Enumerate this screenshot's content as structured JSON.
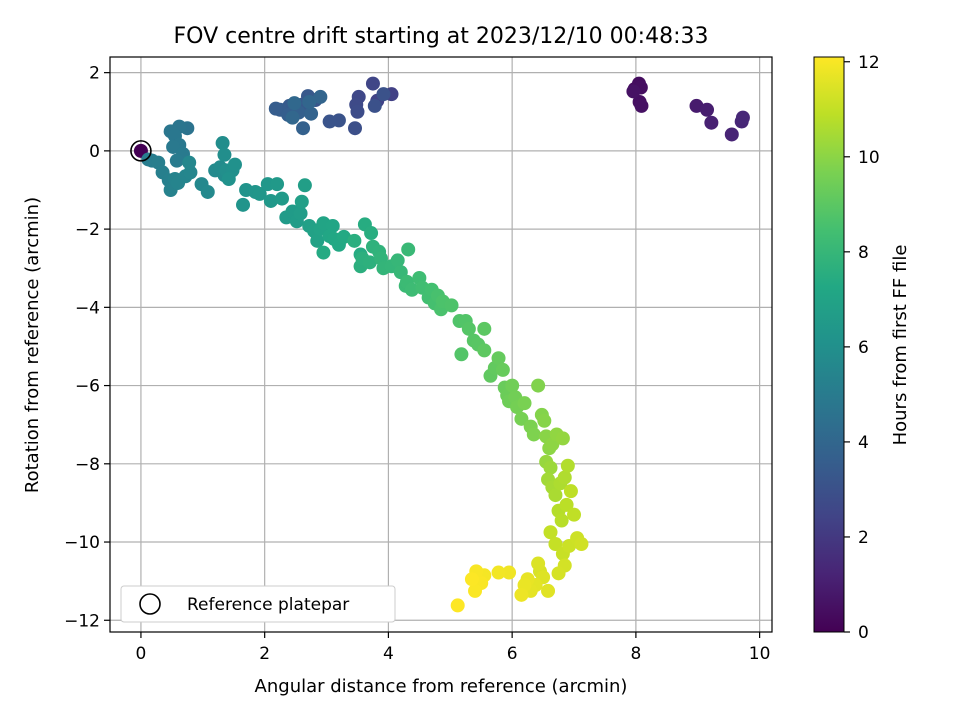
{
  "chart_data": {
    "type": "scatter",
    "title": "FOV centre drift starting at 2023/12/10 00:48:33",
    "xlabel": "Angular distance from reference (arcmin)",
    "ylabel": "Rotation from reference (arcmin)",
    "colorbar_label": "Hours from first FF file",
    "xlim": [
      -0.5,
      10.2
    ],
    "ylim": [
      -12.3,
      2.4
    ],
    "xticks": [
      0,
      2,
      4,
      6,
      8,
      10
    ],
    "yticks": [
      -12,
      -10,
      -8,
      -6,
      -4,
      -2,
      0,
      2
    ],
    "colorbar_range": [
      0,
      12.1
    ],
    "colorbar_ticks": [
      0,
      2,
      4,
      6,
      8,
      10,
      12
    ],
    "colormap": "viridis",
    "grid": true,
    "legend_position": "lower-left",
    "legend_label": "Reference platepar",
    "reference_point": {
      "x": 0,
      "y": 0
    },
    "points": [
      [
        0.0,
        0.0,
        0.0
      ],
      [
        7.98,
        1.58,
        0.35
      ],
      [
        8.05,
        1.72,
        0.4
      ],
      [
        8.08,
        1.62,
        0.45
      ],
      [
        8.06,
        1.25,
        0.5
      ],
      [
        8.09,
        1.15,
        0.55
      ],
      [
        7.96,
        1.52,
        0.6
      ],
      [
        8.98,
        1.15,
        0.9
      ],
      [
        9.15,
        1.05,
        1.0
      ],
      [
        9.22,
        0.72,
        1.1
      ],
      [
        9.55,
        0.42,
        1.2
      ],
      [
        9.71,
        0.75,
        1.3
      ],
      [
        9.73,
        0.85,
        1.35
      ],
      [
        4.05,
        1.45,
        2.3
      ],
      [
        3.82,
        1.28,
        2.4
      ],
      [
        3.75,
        1.72,
        2.5
      ],
      [
        3.52,
        1.38,
        2.6
      ],
      [
        3.48,
        1.18,
        2.7
      ],
      [
        3.5,
        1.0,
        2.8
      ],
      [
        3.46,
        0.58,
        2.9
      ],
      [
        3.78,
        1.15,
        3.0
      ],
      [
        3.92,
        1.45,
        3.05
      ],
      [
        3.2,
        0.78,
        3.1
      ],
      [
        3.05,
        0.75,
        3.15
      ],
      [
        2.82,
        1.3,
        3.2
      ],
      [
        2.7,
        1.4,
        3.3
      ],
      [
        2.6,
        1.18,
        3.35
      ],
      [
        2.4,
        1.15,
        3.4
      ],
      [
        2.25,
        1.05,
        3.5
      ],
      [
        2.18,
        1.08,
        3.55
      ],
      [
        2.38,
        0.92,
        3.6
      ],
      [
        2.55,
        0.98,
        3.7
      ],
      [
        2.62,
        0.58,
        3.75
      ],
      [
        2.75,
        0.95,
        3.8
      ],
      [
        2.9,
        1.38,
        3.9
      ],
      [
        2.72,
        1.25,
        3.95
      ],
      [
        2.45,
        0.85,
        4.0
      ],
      [
        2.48,
        1.22,
        4.05
      ],
      [
        0.75,
        0.58,
        4.6
      ],
      [
        0.62,
        0.62,
        4.7
      ],
      [
        0.48,
        0.5,
        4.75
      ],
      [
        0.55,
        0.38,
        4.8
      ],
      [
        0.62,
        0.15,
        4.85
      ],
      [
        0.52,
        0.1,
        4.9
      ],
      [
        0.68,
        -0.08,
        4.95
      ],
      [
        0.58,
        -0.25,
        5.0
      ],
      [
        0.18,
        -0.25,
        5.05
      ],
      [
        0.12,
        -0.22,
        5.1
      ],
      [
        0.28,
        -0.3,
        5.15
      ],
      [
        0.35,
        -0.55,
        5.2
      ],
      [
        0.45,
        -0.75,
        5.25
      ],
      [
        0.48,
        -1.0,
        5.3
      ],
      [
        0.55,
        -0.72,
        5.35
      ],
      [
        0.6,
        -0.82,
        5.4
      ],
      [
        0.72,
        -0.65,
        5.45
      ],
      [
        0.8,
        -0.55,
        5.5
      ],
      [
        0.78,
        -0.3,
        5.55
      ],
      [
        0.98,
        -0.85,
        5.6
      ],
      [
        1.08,
        -1.05,
        5.65
      ],
      [
        1.2,
        -0.5,
        5.7
      ],
      [
        1.28,
        -0.42,
        5.75
      ],
      [
        1.35,
        -0.62,
        5.8
      ],
      [
        1.32,
        0.2,
        5.85
      ],
      [
        1.35,
        -0.1,
        5.9
      ],
      [
        1.38,
        -0.5,
        5.95
      ],
      [
        1.48,
        -0.5,
        6.0
      ],
      [
        1.52,
        -0.35,
        6.05
      ],
      [
        1.42,
        -0.72,
        6.1
      ],
      [
        1.7,
        -1.0,
        6.15
      ],
      [
        1.65,
        -1.38,
        6.2
      ],
      [
        1.85,
        -1.05,
        6.25
      ],
      [
        1.92,
        -1.1,
        6.3
      ],
      [
        2.05,
        -0.85,
        6.35
      ],
      [
        2.1,
        -1.28,
        6.4
      ],
      [
        2.2,
        -0.85,
        6.45
      ],
      [
        2.28,
        -1.22,
        6.5
      ],
      [
        2.35,
        -1.7,
        6.55
      ],
      [
        2.45,
        -1.55,
        6.6
      ],
      [
        2.52,
        -1.8,
        6.65
      ],
      [
        2.58,
        -1.6,
        6.7
      ],
      [
        2.65,
        -0.88,
        6.75
      ],
      [
        2.6,
        -1.3,
        6.8
      ],
      [
        2.72,
        -1.92,
        6.85
      ],
      [
        2.8,
        -2.05,
        6.9
      ],
      [
        2.85,
        -2.3,
        6.95
      ],
      [
        2.9,
        -2.0,
        7.0
      ],
      [
        2.95,
        -1.85,
        7.05
      ],
      [
        3.1,
        -1.92,
        7.1
      ],
      [
        3.05,
        -2.18,
        7.15
      ],
      [
        3.12,
        -2.25,
        7.2
      ],
      [
        3.2,
        -2.4,
        7.25
      ],
      [
        3.28,
        -2.2,
        7.3
      ],
      [
        2.95,
        -2.6,
        7.35
      ],
      [
        3.55,
        -2.65,
        7.4
      ],
      [
        3.62,
        -1.88,
        7.45
      ],
      [
        3.72,
        -2.1,
        7.5
      ],
      [
        3.45,
        -2.3,
        7.55
      ],
      [
        3.55,
        -2.95,
        7.6
      ],
      [
        3.58,
        -2.75,
        7.65
      ],
      [
        3.7,
        -2.85,
        7.7
      ],
      [
        3.75,
        -2.45,
        7.75
      ],
      [
        3.85,
        -2.58,
        7.8
      ],
      [
        3.88,
        -2.75,
        7.85
      ],
      [
        3.92,
        -3.0,
        7.9
      ],
      [
        4.05,
        -2.95,
        7.95
      ],
      [
        4.15,
        -2.8,
        8.0
      ],
      [
        4.2,
        -3.1,
        8.05
      ],
      [
        4.32,
        -2.52,
        8.1
      ],
      [
        4.28,
        -3.45,
        8.15
      ],
      [
        4.3,
        -3.35,
        8.2
      ],
      [
        4.38,
        -3.55,
        8.25
      ],
      [
        4.5,
        -3.25,
        8.3
      ],
      [
        4.55,
        -3.5,
        8.35
      ],
      [
        4.65,
        -3.75,
        8.4
      ],
      [
        4.7,
        -3.55,
        8.45
      ],
      [
        4.75,
        -3.9,
        8.5
      ],
      [
        4.8,
        -3.7,
        8.55
      ],
      [
        4.85,
        -4.05,
        8.6
      ],
      [
        4.88,
        -3.85,
        8.65
      ],
      [
        5.02,
        -3.95,
        8.7
      ],
      [
        5.15,
        -4.35,
        8.75
      ],
      [
        5.25,
        -4.35,
        8.78
      ],
      [
        5.18,
        -5.2,
        8.8
      ],
      [
        5.3,
        -4.55,
        8.85
      ],
      [
        5.38,
        -4.85,
        8.9
      ],
      [
        5.45,
        -4.95,
        8.95
      ],
      [
        5.55,
        -4.55,
        9.0
      ],
      [
        5.55,
        -5.1,
        9.05
      ],
      [
        5.65,
        -5.75,
        9.1
      ],
      [
        5.72,
        -5.55,
        9.15
      ],
      [
        5.78,
        -5.3,
        9.2
      ],
      [
        5.85,
        -5.6,
        9.25
      ],
      [
        5.88,
        -6.05,
        9.3
      ],
      [
        5.92,
        -6.25,
        9.35
      ],
      [
        5.95,
        -6.4,
        9.4
      ],
      [
        6.0,
        -6.0,
        9.45
      ],
      [
        6.05,
        -6.3,
        9.5
      ],
      [
        6.08,
        -6.55,
        9.55
      ],
      [
        6.15,
        -6.85,
        9.6
      ],
      [
        6.2,
        -6.45,
        9.65
      ],
      [
        6.3,
        -7.05,
        9.7
      ],
      [
        6.35,
        -7.25,
        9.75
      ],
      [
        6.42,
        -6.0,
        9.8
      ],
      [
        6.48,
        -6.75,
        9.85
      ],
      [
        6.52,
        -6.9,
        9.9
      ],
      [
        6.55,
        -7.3,
        9.95
      ],
      [
        6.6,
        -7.6,
        10.0
      ],
      [
        6.65,
        -7.5,
        10.05
      ],
      [
        6.72,
        -7.25,
        10.1
      ],
      [
        6.82,
        -7.35,
        10.15
      ],
      [
        6.55,
        -7.95,
        10.2
      ],
      [
        6.62,
        -8.1,
        10.3
      ],
      [
        6.58,
        -8.4,
        10.4
      ],
      [
        6.65,
        -8.6,
        10.5
      ],
      [
        6.7,
        -8.8,
        10.55
      ],
      [
        6.78,
        -8.5,
        10.6
      ],
      [
        6.85,
        -8.35,
        10.65
      ],
      [
        6.9,
        -8.05,
        10.7
      ],
      [
        6.75,
        -9.2,
        10.75
      ],
      [
        6.8,
        -9.45,
        10.8
      ],
      [
        6.88,
        -9.05,
        10.85
      ],
      [
        6.95,
        -8.7,
        10.9
      ],
      [
        7.0,
        -9.3,
        10.95
      ],
      [
        6.62,
        -9.75,
        11.0
      ],
      [
        6.7,
        -10.05,
        11.05
      ],
      [
        6.82,
        -10.3,
        11.1
      ],
      [
        6.92,
        -10.1,
        11.15
      ],
      [
        7.05,
        -9.9,
        11.2
      ],
      [
        7.12,
        -10.05,
        11.25
      ],
      [
        6.85,
        -10.6,
        11.3
      ],
      [
        6.75,
        -10.8,
        11.35
      ],
      [
        6.45,
        -10.75,
        11.4
      ],
      [
        6.42,
        -10.55,
        11.45
      ],
      [
        6.5,
        -10.9,
        11.5
      ],
      [
        6.58,
        -11.25,
        11.55
      ],
      [
        6.38,
        -11.1,
        11.6
      ],
      [
        6.3,
        -11.25,
        11.65
      ],
      [
        6.25,
        -10.95,
        11.7
      ],
      [
        6.2,
        -11.1,
        11.75
      ],
      [
        6.15,
        -11.35,
        11.8
      ],
      [
        5.95,
        -10.78,
        11.85
      ],
      [
        5.78,
        -10.78,
        11.9
      ],
      [
        5.55,
        -10.85,
        11.95
      ],
      [
        5.42,
        -10.75,
        12.0
      ],
      [
        5.5,
        -11.05,
        12.02
      ],
      [
        5.4,
        -11.25,
        12.05
      ],
      [
        5.35,
        -10.95,
        12.08
      ],
      [
        5.12,
        -11.62,
        12.1
      ]
    ]
  }
}
